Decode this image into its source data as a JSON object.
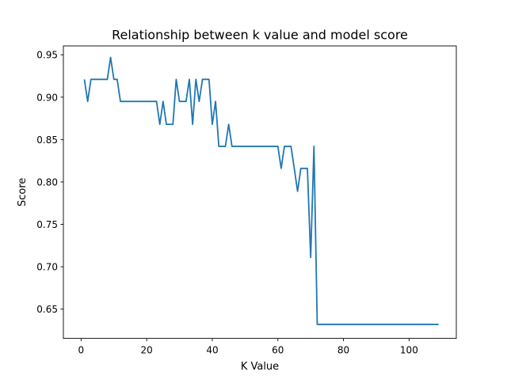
{
  "chart_data": {
    "type": "line",
    "title": "Relationship between k value and model score",
    "xlabel": "K Value",
    "ylabel": "Score",
    "xlim": [
      -5.4,
      114.4
    ],
    "ylim": [
      0.6155,
      0.9605
    ],
    "xticks": [
      0,
      20,
      40,
      60,
      80,
      100
    ],
    "xtick_labels": [
      "0",
      "20",
      "40",
      "60",
      "80",
      "100"
    ],
    "yticks": [
      0.65,
      0.7,
      0.75,
      0.8,
      0.85,
      0.9,
      0.95
    ],
    "ytick_labels": [
      "0.65",
      "0.70",
      "0.75",
      "0.80",
      "0.85",
      "0.90",
      "0.95"
    ],
    "grid": false,
    "legend": "none",
    "series": [
      {
        "color": "#1f77b4",
        "x": [
          1,
          2,
          3,
          4,
          5,
          6,
          7,
          8,
          9,
          10,
          11,
          12,
          13,
          14,
          15,
          16,
          17,
          18,
          19,
          20,
          21,
          22,
          23,
          24,
          25,
          26,
          27,
          28,
          29,
          30,
          31,
          32,
          33,
          34,
          35,
          36,
          37,
          38,
          39,
          40,
          41,
          42,
          43,
          44,
          45,
          46,
          47,
          48,
          49,
          50,
          51,
          52,
          53,
          54,
          55,
          56,
          57,
          58,
          59,
          60,
          61,
          62,
          63,
          64,
          65,
          66,
          67,
          68,
          69,
          70,
          71,
          72,
          73,
          74,
          75,
          76,
          77,
          78,
          79,
          80,
          81,
          82,
          83,
          84,
          85,
          86,
          87,
          88,
          89,
          90,
          91,
          92,
          93,
          94,
          95,
          96,
          97,
          98,
          99,
          100,
          101,
          102,
          103,
          104,
          105,
          106,
          107,
          108,
          109
        ],
        "values": [
          0.921,
          0.895,
          0.921,
          0.921,
          0.921,
          0.921,
          0.921,
          0.921,
          0.947,
          0.921,
          0.921,
          0.895,
          0.895,
          0.895,
          0.895,
          0.895,
          0.895,
          0.895,
          0.895,
          0.895,
          0.895,
          0.895,
          0.895,
          0.868,
          0.895,
          0.868,
          0.868,
          0.868,
          0.921,
          0.895,
          0.895,
          0.895,
          0.921,
          0.868,
          0.921,
          0.895,
          0.921,
          0.921,
          0.921,
          0.868,
          0.895,
          0.842,
          0.842,
          0.842,
          0.868,
          0.842,
          0.842,
          0.842,
          0.842,
          0.842,
          0.842,
          0.842,
          0.842,
          0.842,
          0.842,
          0.842,
          0.842,
          0.842,
          0.842,
          0.842,
          0.816,
          0.842,
          0.842,
          0.842,
          0.816,
          0.789,
          0.816,
          0.816,
          0.816,
          0.711,
          0.842,
          0.632,
          0.632,
          0.632,
          0.632,
          0.632,
          0.632,
          0.632,
          0.632,
          0.632,
          0.632,
          0.632,
          0.632,
          0.632,
          0.632,
          0.632,
          0.632,
          0.632,
          0.632,
          0.632,
          0.632,
          0.632,
          0.632,
          0.632,
          0.632,
          0.632,
          0.632,
          0.632,
          0.632,
          0.632,
          0.632,
          0.632,
          0.632,
          0.632,
          0.632,
          0.632,
          0.632,
          0.632,
          0.632
        ]
      }
    ]
  }
}
